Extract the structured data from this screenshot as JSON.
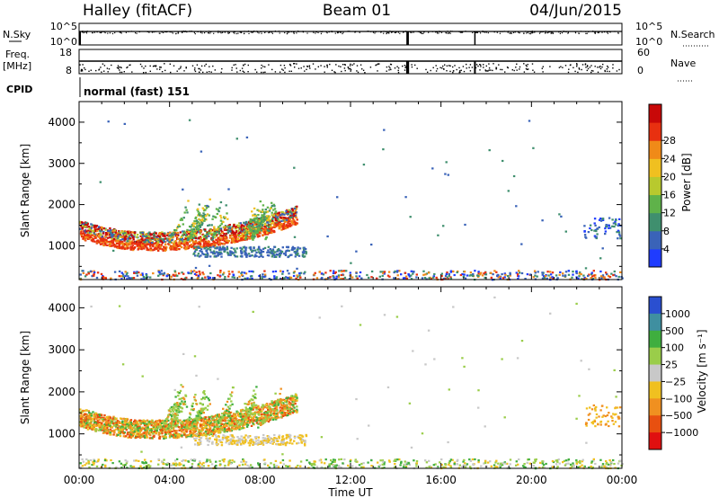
{
  "header": {
    "station": "Halley (fitACF)",
    "beam": "Beam 01",
    "date": "04/Jun/2015"
  },
  "params": {
    "nsky_label": "N.Sky",
    "nsearch_label": "N.Search",
    "freq_label": "Freq.",
    "freq_unit": "[MHz]",
    "nave_label": "Nave",
    "cpid_label": "CPID",
    "cpid_value": "normal (fast) 151",
    "nsky_ticks": [
      "10^5",
      "10^0"
    ],
    "nsearch_ticks": [
      "10^5",
      "10^0"
    ],
    "freq_ticks": [
      "18",
      "8"
    ],
    "nave_ticks": [
      "60",
      "0"
    ]
  },
  "chart_data": [
    {
      "type": "heatmap",
      "panel": "power",
      "ylabel": "Slant Range [km]",
      "ylim": [
        180,
        4500
      ],
      "yticks": [
        "1000",
        "2000",
        "3000",
        "4000"
      ],
      "colorbar_label": "Power [dB]",
      "colorbar_ticks": [
        "4",
        "8",
        "12",
        "16",
        "20",
        "24",
        "28"
      ],
      "colorbar_colors": [
        "#1f3cff",
        "#3a63b8",
        "#3f8f6e",
        "#5fb24a",
        "#b8c92e",
        "#f0c020",
        "#f08a18",
        "#e83010",
        "#c80808"
      ],
      "scatter_regions": [
        {
          "t0": 0.0,
          "t1": 9.5,
          "r0": 800,
          "r1": 1750,
          "level": "mixed"
        },
        {
          "t0": 3.5,
          "t1": 9.0,
          "r0": 1000,
          "r1": 2100,
          "level": "high"
        },
        {
          "t0": 0.0,
          "t1": 24.0,
          "r0": 200,
          "r1": 400,
          "level": "low"
        }
      ]
    },
    {
      "type": "heatmap",
      "panel": "velocity",
      "xlabel": "Time UT",
      "ylabel": "Slant Range [km]",
      "xlim": [
        0,
        24
      ],
      "xticks": [
        "00:00",
        "04:00",
        "08:00",
        "12:00",
        "16:00",
        "20:00",
        "00:00"
      ],
      "ylim": [
        180,
        4500
      ],
      "yticks": [
        "1000",
        "2000",
        "3000",
        "4000"
      ],
      "colorbar_label": "Velocity [m s⁻¹]",
      "colorbar_ticks": [
        "1000",
        "500",
        "100",
        "25",
        "−25",
        "−100",
        "−500",
        "−1000"
      ],
      "colorbar_colors": [
        "#2a4fd0",
        "#3f8fa0",
        "#3fae3f",
        "#9acd4a",
        "#c8c8c8",
        "#f0c020",
        "#f09020",
        "#e85010",
        "#e01010"
      ]
    }
  ]
}
